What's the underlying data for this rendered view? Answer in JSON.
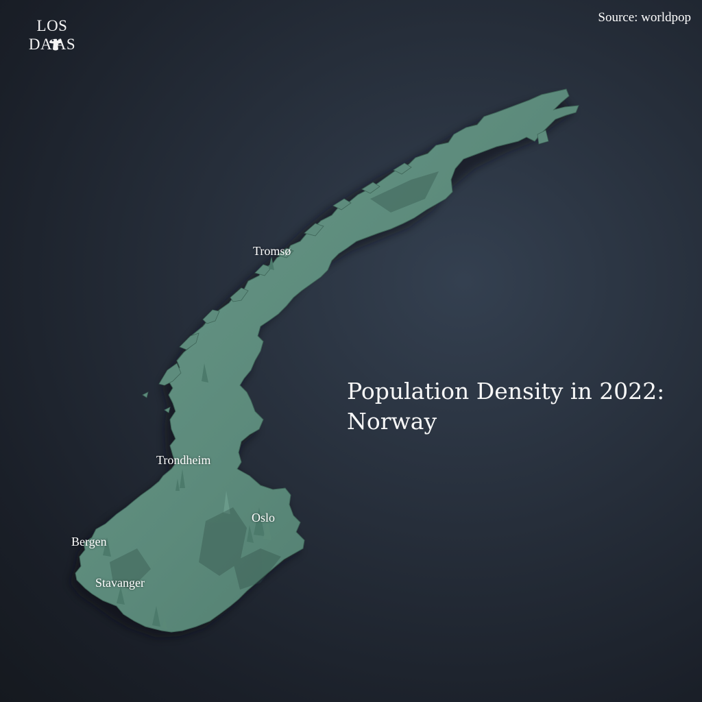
{
  "logo": {
    "line1": "LOS",
    "line2": "DA  AS",
    "mark_icon": "mushroom-icon"
  },
  "source": "Source: worldpop",
  "title": {
    "line1": "Population Density in 2022:",
    "line2": "Norway"
  },
  "cities": [
    {
      "key": "tromso",
      "label": "Tromsø"
    },
    {
      "key": "trondheim",
      "label": "Trondheim"
    },
    {
      "key": "oslo",
      "label": "Oslo"
    },
    {
      "key": "bergen",
      "label": "Bergen"
    },
    {
      "key": "stavanger",
      "label": "Stavanger"
    }
  ],
  "colors": {
    "land": "#5c8a7b",
    "land_shadow": "#2f4c45",
    "background": "#262e3a"
  }
}
